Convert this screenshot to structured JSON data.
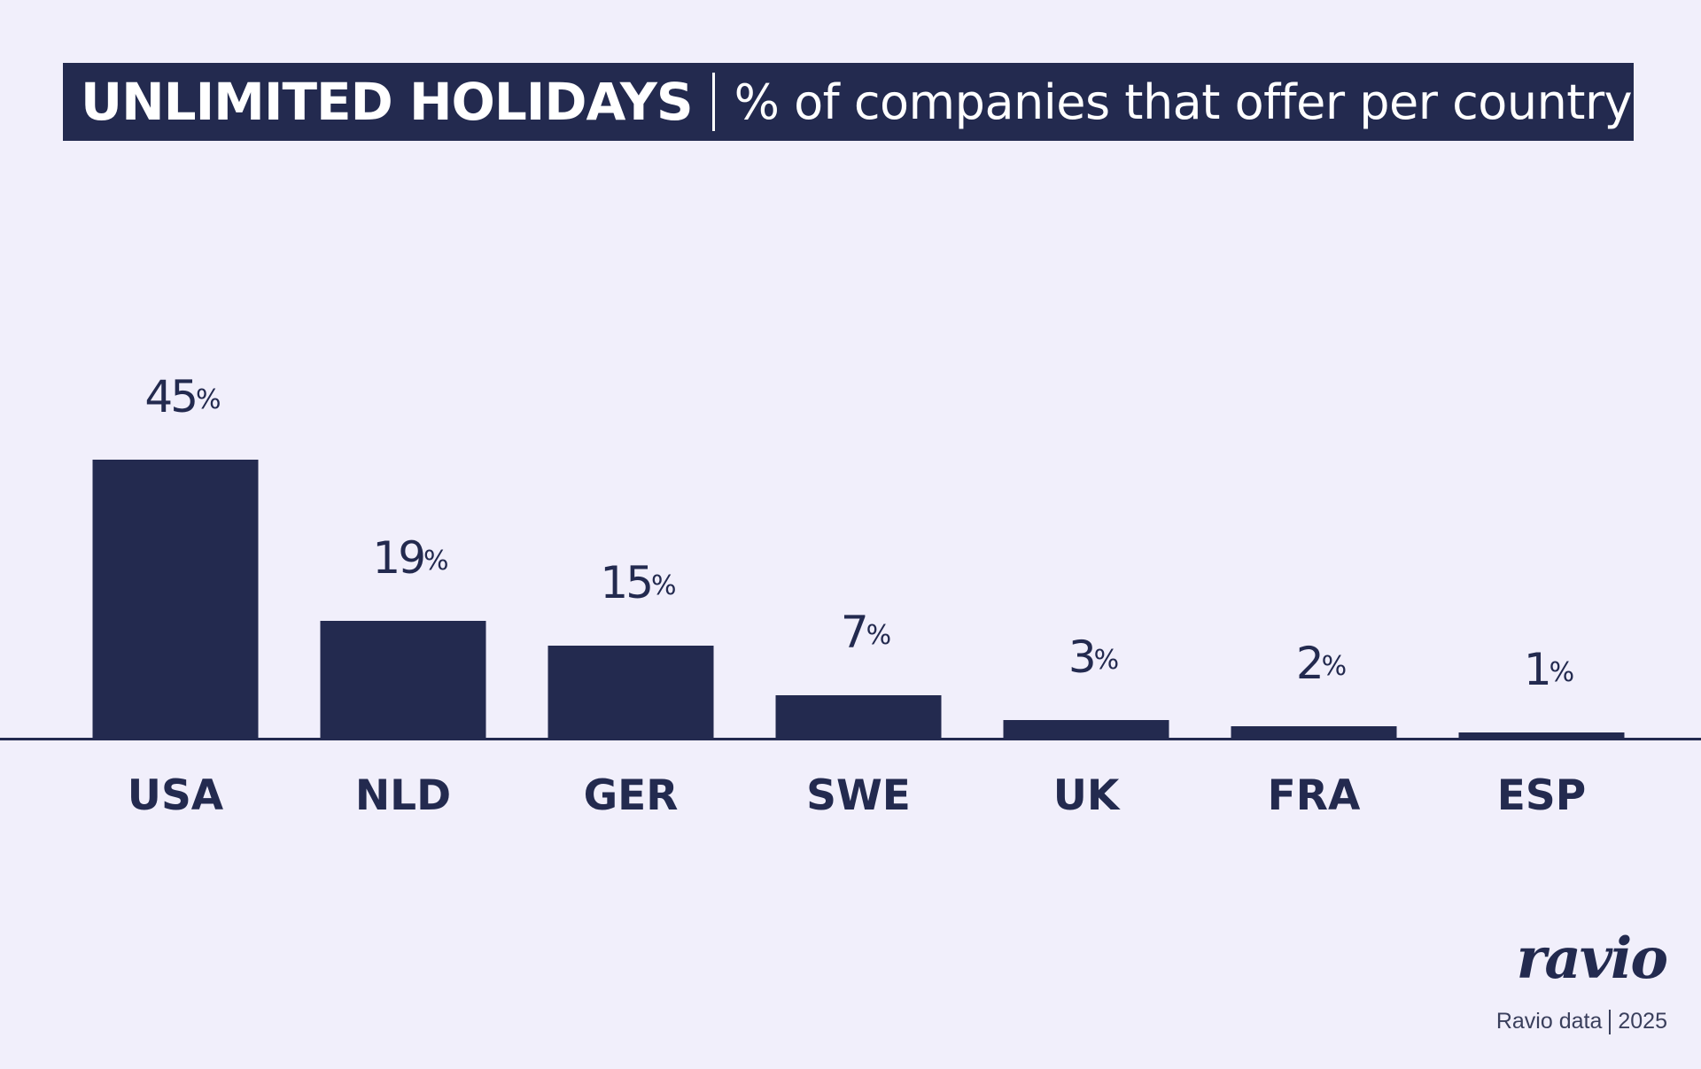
{
  "title": {
    "main": "UNLIMITED HOLIDAYS",
    "subtitle": "% of companies that offer per country"
  },
  "chart_data": {
    "type": "bar",
    "categories": [
      "USA",
      "NLD",
      "GER",
      "SWE",
      "UK",
      "FRA",
      "ESP"
    ],
    "values": [
      45,
      19,
      15,
      7,
      3,
      2,
      1
    ],
    "value_suffix": "%",
    "title": "UNLIMITED HOLIDAYS",
    "subtitle": "% of companies that offer per country",
    "ylim": [
      0,
      45
    ],
    "grid": false,
    "legend": "none",
    "bar_color": "#232a4f"
  },
  "brand": {
    "logo": "ravio",
    "source": "Ravio data",
    "year": "2025"
  },
  "colors": {
    "background": "#f1effb",
    "ink": "#232a4f"
  }
}
